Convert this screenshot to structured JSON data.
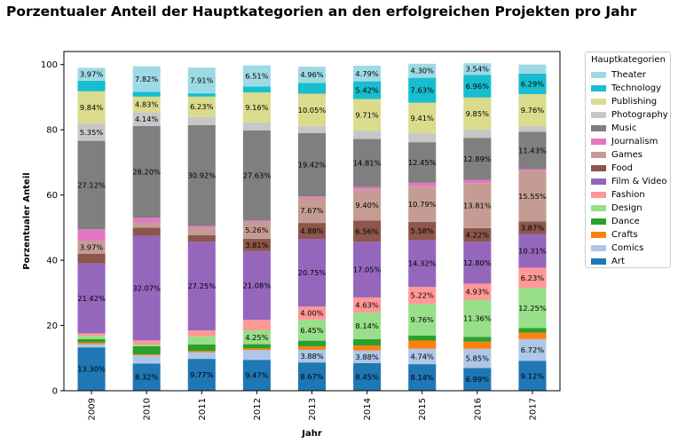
{
  "chart_data": {
    "type": "bar",
    "stacked": true,
    "title": "Porzentualer Anteil der Hauptkategorien an den erfolgreichen Projekten pro Jahr",
    "xlabel": "Jahr",
    "ylabel": "Porzentualer Anteil",
    "ylim": [
      0,
      104
    ],
    "yticks": [
      0,
      20,
      40,
      60,
      80,
      100
    ],
    "categories": [
      "2009",
      "2010",
      "2011",
      "2012",
      "2013",
      "2014",
      "2015",
      "2016",
      "2017"
    ],
    "legend_title": "Hauptkategorien",
    "legend_position": "outside-right",
    "grid": false,
    "series": [
      {
        "name": "Art",
        "color": "#1f77b4",
        "values": [
          13.3,
          8.32,
          9.77,
          9.47,
          8.67,
          8.45,
          8.14,
          6.99,
          9.12
        ]
      },
      {
        "name": "Comics",
        "color": "#aec7e8",
        "values": [
          1.0,
          2.5,
          2.0,
          3.0,
          3.88,
          3.88,
          4.74,
          5.85,
          6.72
        ]
      },
      {
        "name": "Crafts",
        "color": "#ff7f0e",
        "values": [
          0.5,
          0.3,
          0.4,
          0.5,
          1.0,
          1.5,
          2.5,
          2.2,
          2.0
        ]
      },
      {
        "name": "Dance",
        "color": "#2ca02c",
        "values": [
          1.0,
          2.5,
          2.0,
          1.3,
          1.8,
          2.0,
          1.5,
          1.5,
          1.4
        ]
      },
      {
        "name": "Design",
        "color": "#98df8a",
        "values": [
          1.0,
          0.5,
          2.5,
          4.25,
          6.45,
          8.14,
          9.76,
          11.36,
          12.25
        ]
      },
      {
        "name": "Fashion",
        "color": "#ff9896",
        "values": [
          0.8,
          1.3,
          1.8,
          3.2,
          4.0,
          4.63,
          5.22,
          4.93,
          6.23
        ]
      },
      {
        "name": "Film & Video",
        "color": "#9467bd",
        "values": [
          21.42,
          32.07,
          27.25,
          21.08,
          20.75,
          17.05,
          14.32,
          12.8,
          10.31
        ]
      },
      {
        "name": "Food",
        "color": "#8c564b",
        "values": [
          3.0,
          2.5,
          2.0,
          3.81,
          4.88,
          6.56,
          5.58,
          4.22,
          3.87
        ]
      },
      {
        "name": "Games",
        "color": "#c49c94",
        "values": [
          3.97,
          1.5,
          2.3,
          5.26,
          7.67,
          9.4,
          10.79,
          13.81,
          15.55
        ]
      },
      {
        "name": "Journalism",
        "color": "#e377c2",
        "values": [
          3.5,
          1.5,
          0.5,
          0.3,
          0.5,
          0.8,
          1.2,
          1.0,
          0.5
        ]
      },
      {
        "name": "Music",
        "color": "#7f7f7f",
        "values": [
          27.12,
          28.2,
          30.92,
          27.63,
          19.42,
          14.81,
          12.45,
          12.89,
          11.43
        ]
      },
      {
        "name": "Photography",
        "color": "#c7c7c7",
        "values": [
          5.35,
          4.14,
          2.5,
          2.5,
          2.0,
          2.5,
          2.7,
          2.5,
          1.8
        ]
      },
      {
        "name": "Publishing",
        "color": "#dbdb8d",
        "values": [
          9.84,
          4.83,
          6.23,
          9.16,
          10.05,
          9.71,
          9.41,
          9.85,
          9.76
        ]
      },
      {
        "name": "Technology",
        "color": "#17becf",
        "values": [
          3.23,
          1.5,
          1.0,
          1.8,
          3.31,
          5.42,
          7.63,
          6.96,
          6.29
        ]
      },
      {
        "name": "Theater",
        "color": "#9edae5",
        "values": [
          3.97,
          7.82,
          7.91,
          6.51,
          4.96,
          4.79,
          4.3,
          3.54,
          2.77
        ]
      }
    ],
    "data_labels": [
      {
        "series": "Art",
        "category": "2009",
        "text": "13.30%"
      },
      {
        "series": "Art",
        "category": "2010",
        "text": "8.32%"
      },
      {
        "series": "Art",
        "category": "2011",
        "text": "9.77%"
      },
      {
        "series": "Art",
        "category": "2012",
        "text": "9.47%"
      },
      {
        "series": "Art",
        "category": "2013",
        "text": "8.67%"
      },
      {
        "series": "Art",
        "category": "2014",
        "text": "8.45%"
      },
      {
        "series": "Art",
        "category": "2015",
        "text": "8.14%"
      },
      {
        "series": "Art",
        "category": "2016",
        "text": "6.99%"
      },
      {
        "series": "Art",
        "category": "2017",
        "text": "9.12%"
      },
      {
        "series": "Comics",
        "category": "2013",
        "text": "3.88%"
      },
      {
        "series": "Comics",
        "category": "2014",
        "text": "3.88%"
      },
      {
        "series": "Comics",
        "category": "2015",
        "text": "4.74%"
      },
      {
        "series": "Comics",
        "category": "2016",
        "text": "5.85%"
      },
      {
        "series": "Comics",
        "category": "2017",
        "text": "6.72%"
      },
      {
        "series": "Design",
        "category": "2012",
        "text": "4.25%"
      },
      {
        "series": "Design",
        "category": "2013",
        "text": "6.45%"
      },
      {
        "series": "Design",
        "category": "2014",
        "text": "8.14%"
      },
      {
        "series": "Design",
        "category": "2015",
        "text": "9.76%"
      },
      {
        "series": "Design",
        "category": "2016",
        "text": "11.36%"
      },
      {
        "series": "Design",
        "category": "2017",
        "text": "12.25%"
      },
      {
        "series": "Fashion",
        "category": "2013",
        "text": "4.00%"
      },
      {
        "series": "Fashion",
        "category": "2014",
        "text": "4.63%"
      },
      {
        "series": "Fashion",
        "category": "2015",
        "text": "5.22%"
      },
      {
        "series": "Fashion",
        "category": "2016",
        "text": "4.93%"
      },
      {
        "series": "Fashion",
        "category": "2017",
        "text": "6.23%"
      },
      {
        "series": "Film & Video",
        "category": "2009",
        "text": "21.42%"
      },
      {
        "series": "Film & Video",
        "category": "2010",
        "text": "32.07%"
      },
      {
        "series": "Film & Video",
        "category": "2011",
        "text": "27.25%"
      },
      {
        "series": "Film & Video",
        "category": "2012",
        "text": "21.08%"
      },
      {
        "series": "Film & Video",
        "category": "2013",
        "text": "20.75%"
      },
      {
        "series": "Film & Video",
        "category": "2014",
        "text": "17.05%"
      },
      {
        "series": "Film & Video",
        "category": "2015",
        "text": "14.32%"
      },
      {
        "series": "Film & Video",
        "category": "2016",
        "text": "12.80%"
      },
      {
        "series": "Film & Video",
        "category": "2017",
        "text": "10.31%"
      },
      {
        "series": "Food",
        "category": "2012",
        "text": "3.81%"
      },
      {
        "series": "Food",
        "category": "2013",
        "text": "4.88%"
      },
      {
        "series": "Food",
        "category": "2014",
        "text": "6.56%"
      },
      {
        "series": "Food",
        "category": "2015",
        "text": "5.58%"
      },
      {
        "series": "Food",
        "category": "2016",
        "text": "4.22%"
      },
      {
        "series": "Food",
        "category": "2017",
        "text": "3.87%"
      },
      {
        "series": "Games",
        "category": "2009",
        "text": "3.97%"
      },
      {
        "series": "Games",
        "category": "2012",
        "text": "5.26%"
      },
      {
        "series": "Games",
        "category": "2013",
        "text": "7.67%"
      },
      {
        "series": "Games",
        "category": "2014",
        "text": "9.40%"
      },
      {
        "series": "Games",
        "category": "2015",
        "text": "10.79%"
      },
      {
        "series": "Games",
        "category": "2016",
        "text": "13.81%"
      },
      {
        "series": "Games",
        "category": "2017",
        "text": "15.55%"
      },
      {
        "series": "Music",
        "category": "2009",
        "text": "27.12%"
      },
      {
        "series": "Music",
        "category": "2010",
        "text": "28.20%"
      },
      {
        "series": "Music",
        "category": "2011",
        "text": "30.92%"
      },
      {
        "series": "Music",
        "category": "2012",
        "text": "27.63%"
      },
      {
        "series": "Music",
        "category": "2013",
        "text": "19.42%"
      },
      {
        "series": "Music",
        "category": "2014",
        "text": "14.81%"
      },
      {
        "series": "Music",
        "category": "2015",
        "text": "12.45%"
      },
      {
        "series": "Music",
        "category": "2016",
        "text": "12.89%"
      },
      {
        "series": "Music",
        "category": "2017",
        "text": "11.43%"
      },
      {
        "series": "Photography",
        "category": "2009",
        "text": "5.35%"
      },
      {
        "series": "Photography",
        "category": "2010",
        "text": "4.14%"
      },
      {
        "series": "Publishing",
        "category": "2009",
        "text": "9.84%"
      },
      {
        "series": "Publishing",
        "category": "2010",
        "text": "4.83%"
      },
      {
        "series": "Publishing",
        "category": "2011",
        "text": "6.23%"
      },
      {
        "series": "Publishing",
        "category": "2012",
        "text": "9.16%"
      },
      {
        "series": "Publishing",
        "category": "2013",
        "text": "10.05%"
      },
      {
        "series": "Publishing",
        "category": "2014",
        "text": "9.71%"
      },
      {
        "series": "Publishing",
        "category": "2015",
        "text": "9.41%"
      },
      {
        "series": "Publishing",
        "category": "2016",
        "text": "9.85%"
      },
      {
        "series": "Publishing",
        "category": "2017",
        "text": "9.76%"
      },
      {
        "series": "Technology",
        "category": "2014",
        "text": "5.42%"
      },
      {
        "series": "Technology",
        "category": "2015",
        "text": "7.63%"
      },
      {
        "series": "Technology",
        "category": "2016",
        "text": "6.96%"
      },
      {
        "series": "Technology",
        "category": "2017",
        "text": "6.29%"
      },
      {
        "series": "Theater",
        "category": "2009",
        "text": "3.97%"
      },
      {
        "series": "Theater",
        "category": "2010",
        "text": "7.82%"
      },
      {
        "series": "Theater",
        "category": "2011",
        "text": "7.91%"
      },
      {
        "series": "Theater",
        "category": "2012",
        "text": "6.51%"
      },
      {
        "series": "Theater",
        "category": "2013",
        "text": "4.96%"
      },
      {
        "series": "Theater",
        "category": "2014",
        "text": "4.79%"
      },
      {
        "series": "Theater",
        "category": "2015",
        "text": "4.30%"
      },
      {
        "series": "Theater",
        "category": "2016",
        "text": "3.54%"
      }
    ]
  }
}
